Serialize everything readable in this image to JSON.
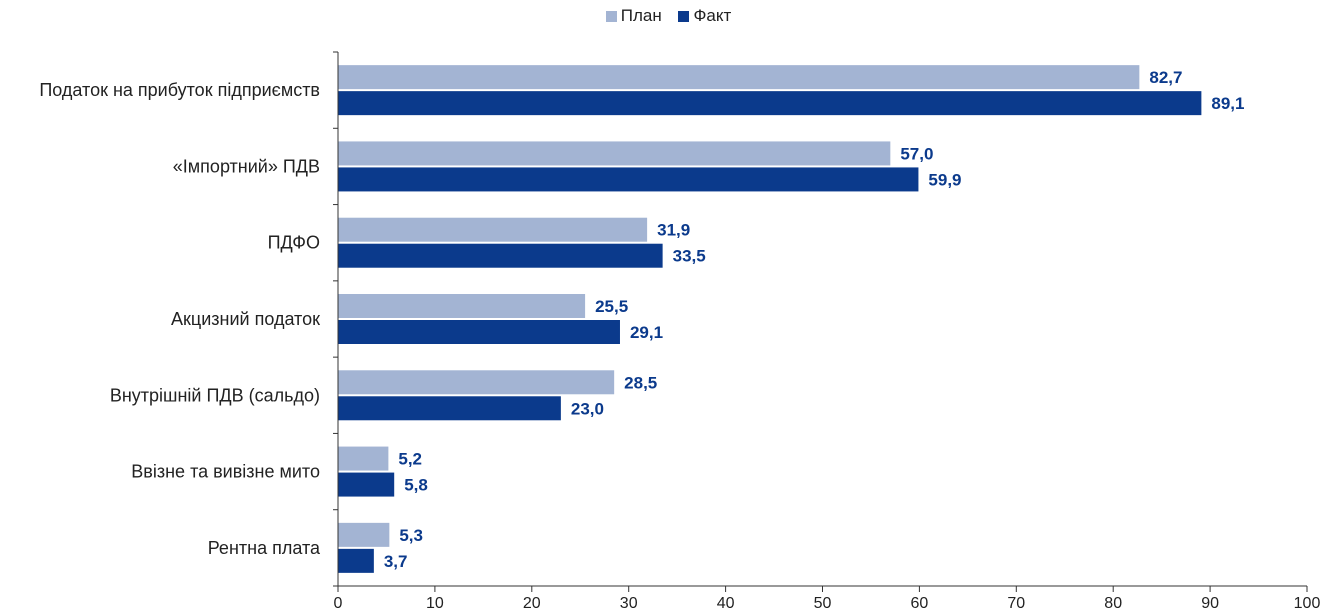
{
  "chart_data": {
    "type": "bar",
    "orientation": "horizontal",
    "categories": [
      "Податок на прибуток підприємств",
      "«Імпортний» ПДВ",
      "ПДФО",
      "Акцизний податок",
      "Внутрішній ПДВ (сальдо)",
      "Ввізне та вивізне мито",
      "Рентна плата"
    ],
    "series": [
      {
        "name": "План",
        "color": "#a3b4d3",
        "values": [
          82.7,
          57.0,
          31.9,
          25.5,
          28.5,
          5.2,
          5.3
        ],
        "labels": [
          "82,7",
          "57,0",
          "31,9",
          "25,5",
          "28,5",
          "5,2",
          "5,3"
        ]
      },
      {
        "name": "Факт",
        "color": "#0b3a8c",
        "values": [
          89.1,
          59.9,
          33.5,
          29.1,
          23.0,
          5.8,
          3.7
        ],
        "labels": [
          "89,1",
          "59,9",
          "33,5",
          "29,1",
          "23,0",
          "5,8",
          "3,7"
        ]
      }
    ],
    "xlim": [
      0,
      100
    ],
    "xticks": [
      0,
      10,
      20,
      30,
      40,
      50,
      60,
      70,
      80,
      90,
      100
    ],
    "legend_position": "top-center",
    "grid": false,
    "label_color": "#0b3a8c"
  }
}
